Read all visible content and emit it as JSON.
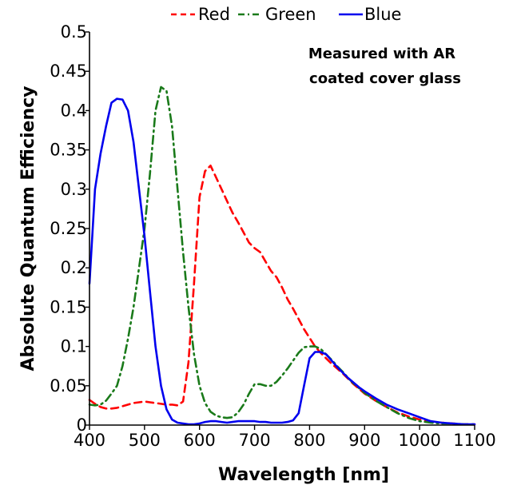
{
  "chart_data": {
    "type": "line",
    "title": "",
    "xlabel": "Wavelength [nm]",
    "ylabel": "Absolute Quantum Efficiency",
    "xlim": [
      400,
      1100
    ],
    "ylim": [
      0,
      0.5
    ],
    "x_ticks": [
      400,
      500,
      600,
      700,
      800,
      900,
      1000,
      1100
    ],
    "y_ticks": [
      0,
      0.05,
      0.1,
      0.15,
      0.2,
      0.25,
      0.3,
      0.35,
      0.4,
      0.45,
      0.5
    ],
    "y_tick_labels": [
      "0",
      "0.05",
      "0.1",
      "0.15",
      "0.2",
      "0.25",
      "0.3",
      "0.35",
      "0.4",
      "0.45",
      "0.5"
    ],
    "grid": false,
    "legend_position": "top",
    "annotation": [
      "Measured with AR",
      "coated cover glass"
    ],
    "series": [
      {
        "name": "Red",
        "color": "#ff0000",
        "style": "dashed",
        "x": [
          400,
          410,
          420,
          430,
          440,
          450,
          460,
          470,
          480,
          490,
          500,
          510,
          520,
          530,
          540,
          550,
          560,
          570,
          580,
          590,
          600,
          610,
          620,
          630,
          640,
          650,
          660,
          670,
          680,
          690,
          700,
          710,
          720,
          730,
          740,
          750,
          760,
          770,
          780,
          790,
          800,
          810,
          820,
          830,
          840,
          850,
          860,
          870,
          880,
          890,
          900,
          920,
          940,
          960,
          980,
          1000,
          1020,
          1040,
          1060,
          1080,
          1100
        ],
        "y": [
          0.032,
          0.027,
          0.023,
          0.021,
          0.021,
          0.022,
          0.024,
          0.026,
          0.028,
          0.029,
          0.03,
          0.029,
          0.028,
          0.027,
          0.026,
          0.026,
          0.025,
          0.03,
          0.08,
          0.18,
          0.29,
          0.323,
          0.33,
          0.315,
          0.3,
          0.285,
          0.27,
          0.258,
          0.245,
          0.232,
          0.225,
          0.22,
          0.208,
          0.196,
          0.188,
          0.175,
          0.16,
          0.148,
          0.135,
          0.122,
          0.111,
          0.1,
          0.092,
          0.085,
          0.078,
          0.072,
          0.066,
          0.059,
          0.052,
          0.046,
          0.04,
          0.031,
          0.023,
          0.016,
          0.011,
          0.007,
          0.004,
          0.003,
          0.002,
          0.001,
          0.001
        ]
      },
      {
        "name": "Green",
        "color": "#1a7a1a",
        "style": "dash-dot",
        "x": [
          400,
          410,
          420,
          430,
          440,
          450,
          460,
          470,
          480,
          490,
          500,
          510,
          520,
          530,
          540,
          550,
          560,
          570,
          580,
          590,
          600,
          610,
          620,
          630,
          640,
          650,
          660,
          670,
          680,
          690,
          700,
          710,
          720,
          730,
          740,
          750,
          760,
          770,
          780,
          790,
          800,
          810,
          820,
          830,
          840,
          850,
          860,
          870,
          880,
          890,
          900,
          920,
          940,
          960,
          980,
          1000,
          1020,
          1040,
          1060,
          1080,
          1100
        ],
        "y": [
          0.026,
          0.025,
          0.026,
          0.031,
          0.04,
          0.05,
          0.075,
          0.11,
          0.15,
          0.2,
          0.25,
          0.32,
          0.4,
          0.43,
          0.425,
          0.38,
          0.3,
          0.22,
          0.15,
          0.09,
          0.05,
          0.028,
          0.017,
          0.012,
          0.01,
          0.009,
          0.01,
          0.016,
          0.026,
          0.04,
          0.052,
          0.052,
          0.05,
          0.05,
          0.055,
          0.063,
          0.072,
          0.082,
          0.092,
          0.099,
          0.1,
          0.1,
          0.097,
          0.09,
          0.083,
          0.075,
          0.068,
          0.06,
          0.053,
          0.047,
          0.041,
          0.031,
          0.023,
          0.015,
          0.009,
          0.005,
          0.003,
          0.002,
          0.002,
          0.001,
          0.001
        ]
      },
      {
        "name": "Blue",
        "color": "#0000ee",
        "style": "solid",
        "x": [
          400,
          410,
          420,
          430,
          440,
          450,
          460,
          470,
          480,
          490,
          500,
          510,
          520,
          530,
          540,
          550,
          560,
          570,
          580,
          590,
          600,
          610,
          620,
          630,
          640,
          650,
          660,
          670,
          680,
          690,
          700,
          710,
          720,
          730,
          740,
          750,
          760,
          770,
          780,
          790,
          800,
          810,
          820,
          830,
          840,
          850,
          860,
          870,
          880,
          890,
          900,
          920,
          940,
          960,
          980,
          1000,
          1020,
          1040,
          1060,
          1080,
          1100
        ],
        "y": [
          0.18,
          0.3,
          0.345,
          0.38,
          0.41,
          0.415,
          0.414,
          0.4,
          0.36,
          0.3,
          0.24,
          0.17,
          0.1,
          0.05,
          0.02,
          0.007,
          0.003,
          0.002,
          0.001,
          0.001,
          0.002,
          0.004,
          0.005,
          0.005,
          0.004,
          0.003,
          0.004,
          0.005,
          0.005,
          0.005,
          0.005,
          0.004,
          0.004,
          0.003,
          0.003,
          0.003,
          0.004,
          0.006,
          0.015,
          0.05,
          0.085,
          0.093,
          0.093,
          0.09,
          0.082,
          0.074,
          0.067,
          0.06,
          0.054,
          0.048,
          0.043,
          0.034,
          0.026,
          0.02,
          0.015,
          0.01,
          0.005,
          0.003,
          0.002,
          0.001,
          0.001
        ]
      }
    ]
  }
}
